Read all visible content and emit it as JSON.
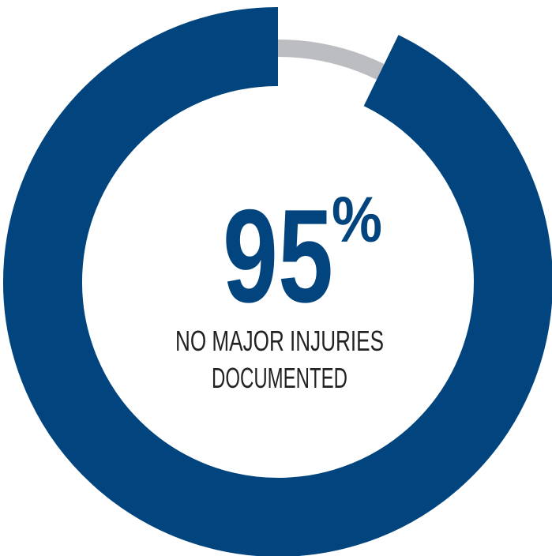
{
  "chart_data": {
    "type": "pie",
    "style": "donut",
    "value": 95,
    "remainder": 5,
    "center_value": "95",
    "center_unit": "%",
    "caption_line1": "NO MAJOR INJURIES",
    "caption_line2": "DOCUMENTED",
    "colors": {
      "filled": "#02457e",
      "track": "#bcbdc1",
      "text_value": "#02457e",
      "text_caption": "#222222"
    }
  }
}
